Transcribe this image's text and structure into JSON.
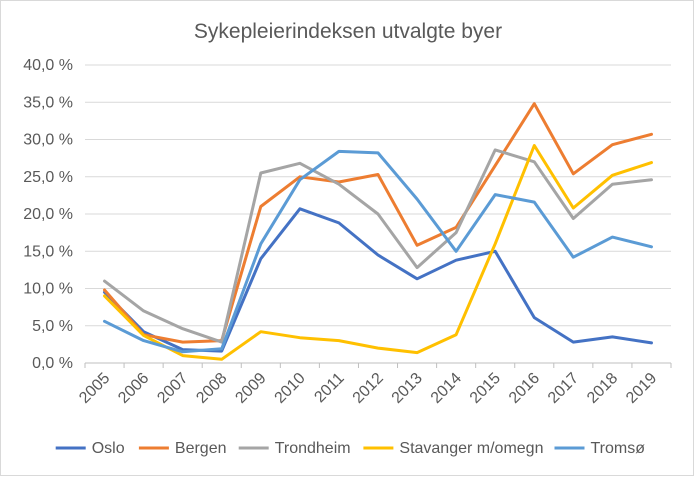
{
  "chart_data": {
    "type": "line",
    "title": "Sykepleierindeksen utvalgte byer",
    "xlabel": "",
    "ylabel": "",
    "x": [
      "2005",
      "2006",
      "2007",
      "2008",
      "2009",
      "2010",
      "2011",
      "2012",
      "2013",
      "2014",
      "2015",
      "2016",
      "2017",
      "2018",
      "2019"
    ],
    "ylim": [
      0,
      40
    ],
    "yticks": [
      0,
      5,
      10,
      15,
      20,
      25,
      30,
      35,
      40
    ],
    "ytick_labels": [
      "0,0 %",
      "5,0 %",
      "10,0 %",
      "15,0 %",
      "20,0 %",
      "25,0 %",
      "30,0 %",
      "35,0 %",
      "40,0 %"
    ],
    "grid": true,
    "legend_position": "bottom",
    "series": [
      {
        "name": "Oslo",
        "color": "#4472c4",
        "values": [
          9.5,
          4.2,
          1.8,
          1.6,
          14.0,
          20.7,
          18.8,
          14.5,
          11.3,
          13.8,
          15.0,
          6.1,
          2.8,
          3.5,
          2.7
        ]
      },
      {
        "name": "Bergen",
        "color": "#ed7d31",
        "values": [
          9.8,
          3.8,
          2.8,
          3.0,
          21.0,
          25.0,
          24.3,
          25.3,
          15.8,
          18.2,
          26.5,
          34.8,
          25.4,
          29.3,
          30.7
        ]
      },
      {
        "name": "Trondheim",
        "color": "#a5a5a5",
        "values": [
          11.0,
          7.0,
          4.6,
          2.8,
          25.5,
          26.8,
          24.0,
          20.0,
          12.8,
          17.5,
          28.6,
          27.0,
          19.4,
          24.0,
          24.6
        ]
      },
      {
        "name": "Stavanger m/omegn",
        "color": "#ffc000",
        "values": [
          9.0,
          3.7,
          1.0,
          0.5,
          4.2,
          3.4,
          3.0,
          2.0,
          1.4,
          3.8,
          16.0,
          29.2,
          20.8,
          25.2,
          26.9
        ]
      },
      {
        "name": "Tromsø",
        "color": "#5b9bd5",
        "values": [
          5.6,
          3.0,
          1.5,
          1.9,
          16.0,
          24.6,
          28.4,
          28.2,
          22.0,
          15.0,
          22.6,
          21.6,
          14.2,
          16.9,
          15.6
        ]
      }
    ]
  }
}
